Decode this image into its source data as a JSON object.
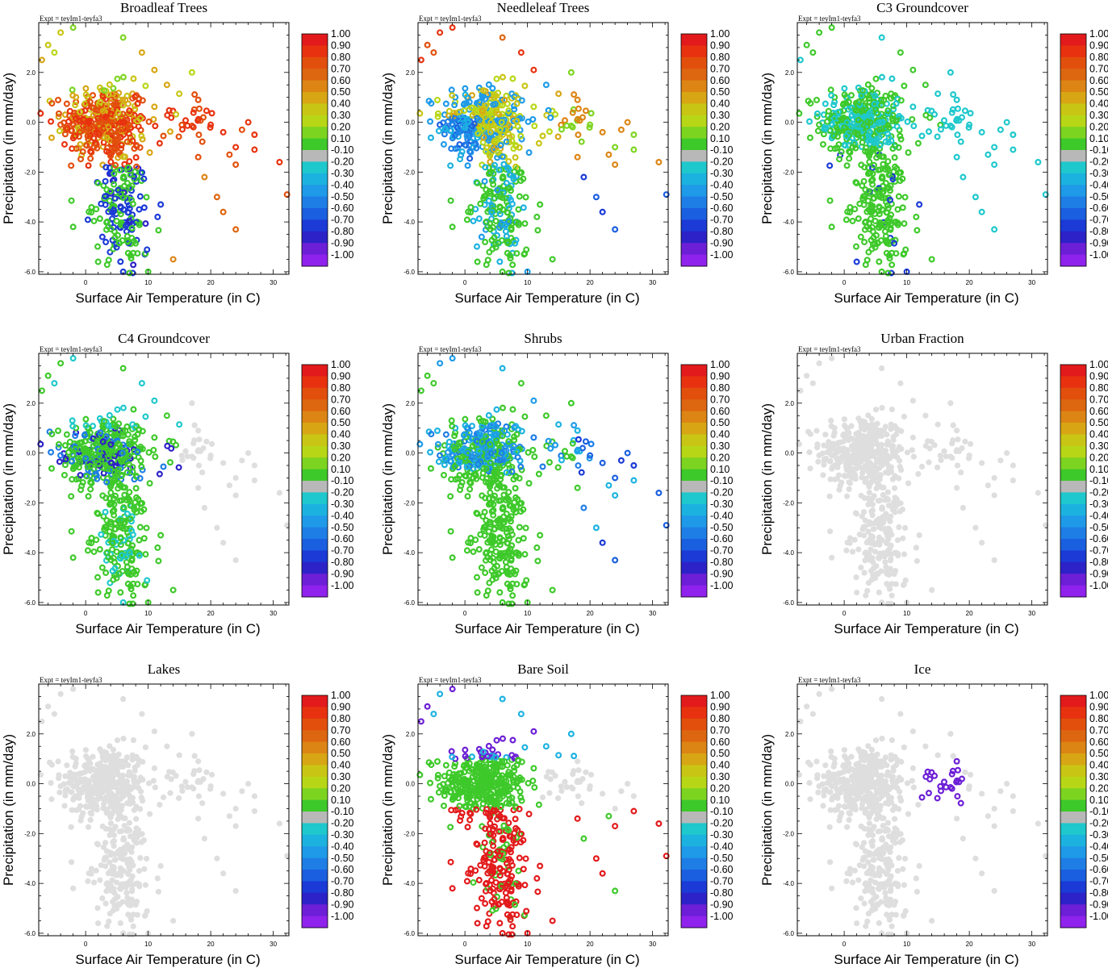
{
  "figure": {
    "expt_label": "Expt = teyIm1-teyfa3",
    "colorbar": {
      "labels": [
        "1.00",
        "0.90",
        "0.80",
        "0.70",
        "0.60",
        "0.50",
        "0.40",
        "0.30",
        "0.20",
        "0.10",
        "-0.10",
        "-0.20",
        "-0.30",
        "-0.40",
        "-0.50",
        "-0.60",
        "-0.70",
        "-0.80",
        "-0.90",
        "-1.00"
      ],
      "colors": [
        "#e31a1c",
        "#e8320f",
        "#e24f0d",
        "#dd6610",
        "#dc8514",
        "#d8a614",
        "#c9c514",
        "#b7d716",
        "#7dd420",
        "#3ec92a",
        "#b8b8b8",
        "#1ec8cc",
        "#1cb2e0",
        "#1e9ae8",
        "#1e7ee6",
        "#1a5fe0",
        "#1b3ad6",
        "#2d22c8",
        "#6c1fd6",
        "#8f22ec"
      ]
    },
    "neutral_color": "#b8b8b8",
    "background_point_color": "#dedede"
  },
  "chart_data": [
    {
      "type": "scatter",
      "title": "Broadleaf Trees",
      "xlabel": "Surface Air Temperature (in C)",
      "ylabel": "Precipitation (in mm/day)",
      "xlim": [
        -7.5,
        32.5
      ],
      "ylim": [
        -6.1,
        4.0
      ],
      "xticks": [
        "0",
        "10",
        "20",
        "30"
      ],
      "yticks": [
        "2.0",
        "0.0",
        "-2.0",
        "-4.0",
        "-6.0"
      ],
      "pattern": "broadleaf"
    },
    {
      "type": "scatter",
      "title": "Needleleaf Trees",
      "xlabel": "Surface Air Temperature (in C)",
      "ylabel": "Precipitation (in mm/day)",
      "xlim": [
        -7.5,
        32.5
      ],
      "ylim": [
        -6.1,
        4.0
      ],
      "xticks": [
        "0",
        "10",
        "20",
        "30"
      ],
      "yticks": [
        "2.0",
        "0.0",
        "-2.0",
        "-4.0",
        "-6.0"
      ],
      "pattern": "needleleaf"
    },
    {
      "type": "scatter",
      "title": "C3 Groundcover",
      "xlabel": "Surface Air Temperature (in C)",
      "ylabel": "Precipitation (in mm/day)",
      "xlim": [
        -7.5,
        32.5
      ],
      "ylim": [
        -6.1,
        4.0
      ],
      "xticks": [
        "0",
        "10",
        "20",
        "30"
      ],
      "yticks": [
        "2.0",
        "0.0",
        "-2.0",
        "-4.0",
        "-6.0"
      ],
      "pattern": "c3"
    },
    {
      "type": "scatter",
      "title": "C4 Groundcover",
      "xlabel": "Surface Air Temperature (in C)",
      "ylabel": "Precipitation (in mm/day)",
      "xlim": [
        -7.5,
        32.5
      ],
      "ylim": [
        -6.1,
        4.0
      ],
      "xticks": [
        "0",
        "10",
        "20",
        "30"
      ],
      "yticks": [
        "2.0",
        "0.0",
        "-2.0",
        "-4.0",
        "-6.0"
      ],
      "pattern": "c4"
    },
    {
      "type": "scatter",
      "title": "Shrubs",
      "xlabel": "Surface Air Temperature (in C)",
      "ylabel": "Precipitation (in mm/day)",
      "xlim": [
        -7.5,
        32.5
      ],
      "ylim": [
        -6.1,
        4.0
      ],
      "xticks": [
        "0",
        "10",
        "20",
        "30"
      ],
      "yticks": [
        "2.0",
        "0.0",
        "-2.0",
        "-4.0",
        "-6.0"
      ],
      "pattern": "shrubs"
    },
    {
      "type": "scatter",
      "title": "Urban Fraction",
      "xlabel": "Surface Air Temperature (in C)",
      "ylabel": "Precipitation (in mm/day)",
      "xlim": [
        -7.5,
        32.5
      ],
      "ylim": [
        -6.1,
        4.0
      ],
      "xticks": [
        "0",
        "10",
        "20",
        "30"
      ],
      "yticks": [
        "2.0",
        "0.0",
        "-2.0",
        "-4.0",
        "-6.0"
      ],
      "pattern": "urban"
    },
    {
      "type": "scatter",
      "title": "Lakes",
      "xlabel": "Surface Air Temperature (in C)",
      "ylabel": "Precipitation (in mm/day)",
      "xlim": [
        -7.5,
        32.5
      ],
      "ylim": [
        -6.1,
        4.0
      ],
      "xticks": [
        "0",
        "10",
        "20",
        "30"
      ],
      "yticks": [
        "2.0",
        "0.0",
        "-2.0",
        "-4.0",
        "-6.0"
      ],
      "pattern": "lakes"
    },
    {
      "type": "scatter",
      "title": "Bare Soil",
      "xlabel": "Surface Air Temperature (in C)",
      "ylabel": "Precipitation (in mm/day)",
      "xlim": [
        -7.5,
        32.5
      ],
      "ylim": [
        -6.1,
        4.0
      ],
      "xticks": [
        "0",
        "10",
        "20",
        "30"
      ],
      "yticks": [
        "2.0",
        "0.0",
        "-2.0",
        "-4.0",
        "-6.0"
      ],
      "pattern": "baresoil"
    },
    {
      "type": "scatter",
      "title": "Ice",
      "xlabel": "Surface Air Temperature (in C)",
      "ylabel": "Precipitation (in mm/day)",
      "xlim": [
        -7.5,
        32.5
      ],
      "ylim": [
        -6.1,
        4.0
      ],
      "xticks": [
        "0",
        "10",
        "20",
        "30"
      ],
      "yticks": [
        "2.0",
        "0.0",
        "-2.0",
        "-4.0",
        "-6.0"
      ],
      "pattern": "ice"
    }
  ]
}
